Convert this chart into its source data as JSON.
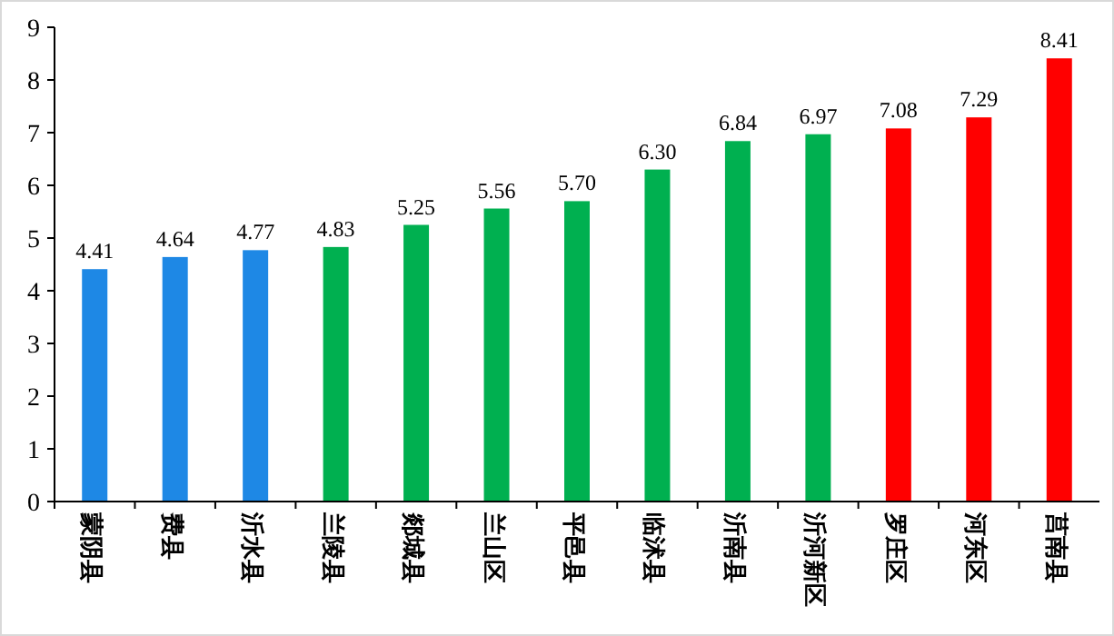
{
  "chart_data": {
    "type": "bar",
    "categories": [
      "蒙阴县",
      "费县",
      "沂水县",
      "兰陵县",
      "郯城县",
      "兰山区",
      "平邑县",
      "临沭县",
      "沂南县",
      "沂河新区",
      "罗庄区",
      "河东区",
      "莒南县"
    ],
    "values": [
      4.41,
      4.64,
      4.77,
      4.83,
      5.25,
      5.56,
      5.7,
      6.3,
      6.84,
      6.97,
      7.08,
      7.29,
      8.41
    ],
    "colors": [
      "#1e88e5",
      "#1e88e5",
      "#1e88e5",
      "#00b050",
      "#00b050",
      "#00b050",
      "#00b050",
      "#00b050",
      "#00b050",
      "#00b050",
      "#ff0000",
      "#ff0000",
      "#ff0000"
    ],
    "value_labels": [
      "4.41",
      "4.64",
      "4.77",
      "4.83",
      "5.25",
      "5.56",
      "5.70",
      "6.30",
      "6.84",
      "6.97",
      "7.08",
      "7.29",
      "8.41"
    ],
    "ylim": [
      0,
      9
    ],
    "yticks": [
      0,
      1,
      2,
      3,
      4,
      5,
      6,
      7,
      8,
      9
    ],
    "grid": false
  }
}
